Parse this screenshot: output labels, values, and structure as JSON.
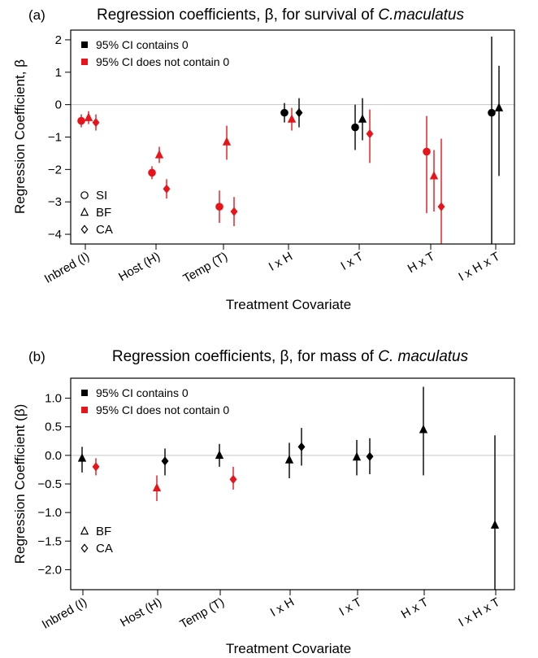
{
  "colors": {
    "contains_zero": "#000000",
    "excludes_zero": "#e8141b",
    "zero_line": "#c8c8c8"
  },
  "categories": [
    "Inbred (I)",
    "Host (H)",
    "Temp (T)",
    "I x H",
    "I x T",
    "H x T",
    "I x H x T"
  ],
  "chart_data": [
    {
      "type": "scatter",
      "panel": "(a)",
      "title_prefix": "Regression coefficients, β, for survival of ",
      "title_italic": "C.maculatus",
      "xlabel": "Treatment Covariate",
      "ylabel": "Regression Coefficient, β",
      "ylim": [
        -4.3,
        2.3
      ],
      "yticks": [
        2,
        1,
        0,
        -1,
        -2,
        -3,
        -4
      ],
      "ytick_labels": [
        "2",
        "1",
        "0",
        "−1",
        "−2",
        "−3",
        "−4"
      ],
      "zero_line": true,
      "legend": {
        "contains": "95% CI contains 0",
        "excludes": "95% CI does not contain 0"
      },
      "shape_legend": [
        {
          "shape": "circle",
          "label": "SI"
        },
        {
          "shape": "triangle",
          "label": "BF"
        },
        {
          "shape": "diamond",
          "label": "CA"
        }
      ],
      "series": [
        {
          "shape": "circle",
          "points": [
            {
              "cat": 0,
              "y": -0.5,
              "lo": -0.7,
              "hi": -0.3,
              "sig": true
            },
            {
              "cat": 1,
              "y": -2.1,
              "lo": -2.3,
              "hi": -1.9,
              "sig": true
            },
            {
              "cat": 2,
              "y": -3.15,
              "lo": -3.65,
              "hi": -2.65,
              "sig": true
            },
            {
              "cat": 3,
              "y": -0.25,
              "lo": -0.55,
              "hi": 0.05,
              "sig": false
            },
            {
              "cat": 4,
              "y": -0.7,
              "lo": -1.4,
              "hi": 0.0,
              "sig": false
            },
            {
              "cat": 5,
              "y": -1.45,
              "lo": -3.35,
              "hi": -0.35,
              "sig": true
            },
            {
              "cat": 6,
              "y": -0.25,
              "lo": -4.3,
              "hi": 2.1,
              "sig": false
            }
          ]
        },
        {
          "shape": "triangle",
          "points": [
            {
              "cat": 0,
              "y": -0.4,
              "lo": -0.6,
              "hi": -0.2,
              "sig": true
            },
            {
              "cat": 1,
              "y": -1.55,
              "lo": -1.8,
              "hi": -1.3,
              "sig": true
            },
            {
              "cat": 2,
              "y": -1.15,
              "lo": -1.7,
              "hi": -0.65,
              "sig": true
            },
            {
              "cat": 3,
              "y": -0.45,
              "lo": -0.8,
              "hi": -0.1,
              "sig": true
            },
            {
              "cat": 4,
              "y": -0.45,
              "lo": -1.1,
              "hi": 0.2,
              "sig": false
            },
            {
              "cat": 5,
              "y": -2.2,
              "lo": -3.3,
              "hi": -1.4,
              "sig": true
            },
            {
              "cat": 6,
              "y": -0.1,
              "lo": -2.2,
              "hi": 1.2,
              "sig": false
            }
          ]
        },
        {
          "shape": "diamond",
          "points": [
            {
              "cat": 0,
              "y": -0.55,
              "lo": -0.8,
              "hi": -0.3,
              "sig": true
            },
            {
              "cat": 1,
              "y": -2.6,
              "lo": -2.9,
              "hi": -2.3,
              "sig": true
            },
            {
              "cat": 2,
              "y": -3.3,
              "lo": -3.75,
              "hi": -2.85,
              "sig": true
            },
            {
              "cat": 3,
              "y": -0.25,
              "lo": -0.7,
              "hi": 0.2,
              "sig": false
            },
            {
              "cat": 4,
              "y": -0.9,
              "lo": -1.8,
              "hi": -0.15,
              "sig": true
            },
            {
              "cat": 5,
              "y": -3.15,
              "lo": -4.3,
              "hi": -1.05,
              "sig": true
            }
          ]
        }
      ]
    },
    {
      "type": "scatter",
      "panel": "(b)",
      "title_prefix": "Regression coefficients, β, for mass of ",
      "title_italic": "C. maculatus",
      "xlabel": "Treatment Covariate",
      "ylabel": "Regression Coefficient (β)",
      "ylim": [
        -2.35,
        1.35
      ],
      "yticks": [
        1.0,
        0.5,
        0.0,
        -0.5,
        -1.0,
        -1.5,
        -2.0
      ],
      "ytick_labels": [
        "1.0",
        "0.5",
        "0.0",
        "−0.5",
        "−1.0",
        "−1.5",
        "−2.0"
      ],
      "zero_line": true,
      "legend": {
        "contains": "95% CI contains 0",
        "excludes": "95% CI does not contain 0"
      },
      "shape_legend": [
        {
          "shape": "triangle",
          "label": "BF"
        },
        {
          "shape": "diamond",
          "label": "CA"
        }
      ],
      "series": [
        {
          "shape": "triangle",
          "points": [
            {
              "cat": 0,
              "y": -0.05,
              "lo": -0.3,
              "hi": 0.15,
              "sig": false
            },
            {
              "cat": 1,
              "y": -0.57,
              "lo": -0.8,
              "hi": -0.35,
              "sig": true
            },
            {
              "cat": 2,
              "y": 0.0,
              "lo": -0.2,
              "hi": 0.2,
              "sig": false
            },
            {
              "cat": 3,
              "y": -0.08,
              "lo": -0.4,
              "hi": 0.22,
              "sig": false
            },
            {
              "cat": 4,
              "y": -0.03,
              "lo": -0.35,
              "hi": 0.27,
              "sig": false
            },
            {
              "cat": 5,
              "y": 0.45,
              "lo": -0.35,
              "hi": 1.2,
              "sig": false
            },
            {
              "cat": 6,
              "y": -1.22,
              "lo": -2.35,
              "hi": 0.35,
              "sig": false
            }
          ]
        },
        {
          "shape": "diamond",
          "points": [
            {
              "cat": 0,
              "y": -0.2,
              "lo": -0.35,
              "hi": -0.05,
              "sig": true
            },
            {
              "cat": 1,
              "y": -0.1,
              "lo": -0.35,
              "hi": 0.12,
              "sig": false
            },
            {
              "cat": 2,
              "y": -0.42,
              "lo": -0.6,
              "hi": -0.2,
              "sig": true
            },
            {
              "cat": 3,
              "y": 0.15,
              "lo": -0.18,
              "hi": 0.48,
              "sig": false
            },
            {
              "cat": 4,
              "y": -0.02,
              "lo": -0.33,
              "hi": 0.3,
              "sig": false
            }
          ]
        }
      ]
    }
  ]
}
